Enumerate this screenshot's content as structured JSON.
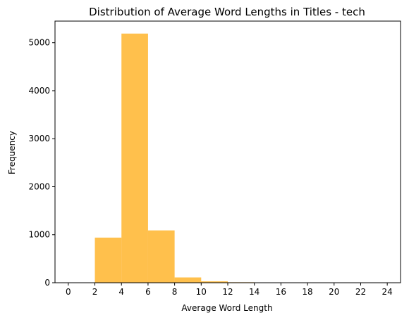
{
  "chart_data": {
    "type": "bar",
    "title": "Distribution of Average Word Lengths in Titles - tech",
    "xlabel": "Average Word Length",
    "ylabel": "Frequency",
    "xlim": [
      -1,
      25
    ],
    "ylim": [
      0,
      5450
    ],
    "xticks": [
      0,
      2,
      4,
      6,
      8,
      10,
      12,
      14,
      16,
      18,
      20,
      22,
      24
    ],
    "yticks": [
      0,
      1000,
      2000,
      3000,
      4000,
      5000
    ],
    "bin_edges": [
      2,
      4,
      6,
      8,
      10,
      12,
      14
    ],
    "values": [
      940,
      5190,
      1090,
      110,
      30,
      10
    ],
    "bar_color": "#ffa500",
    "bar_opacity": 0.7,
    "grid": false,
    "legend": "none"
  }
}
